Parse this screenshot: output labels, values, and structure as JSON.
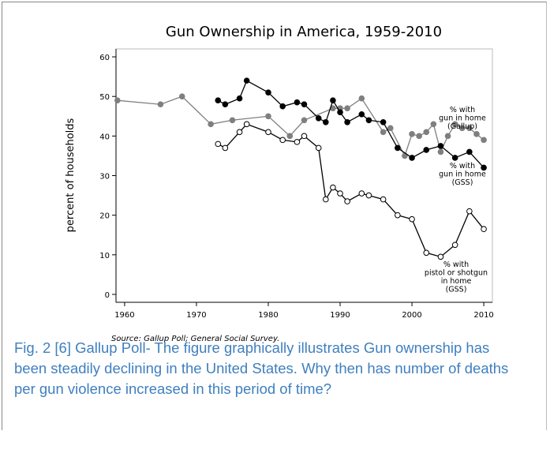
{
  "chart_data": {
    "type": "line",
    "title": "Gun Ownership in America, 1959-2010",
    "y_label": "percent of households",
    "source": "Source: Gallup Poll; General Social Survey.",
    "xlim": [
      1958.8,
      2011.2
    ],
    "xticks": [
      1960,
      1970,
      1980,
      1990,
      2000,
      2010
    ],
    "ylim": [
      -2,
      62
    ],
    "yticks": [
      0,
      10,
      20,
      30,
      40,
      50,
      60
    ],
    "series": [
      {
        "label_lines": [
          "% with",
          "gun in home",
          "(Gallup)"
        ],
        "color": "#7f7f7f",
        "marker_fill": "#7f7f7f",
        "x": [
          1959,
          1965,
          1968,
          1972,
          1975,
          1980,
          1983,
          1985,
          1989,
          1990,
          1991,
          1993,
          1996,
          1997,
          1999,
          2000,
          2001,
          2002,
          2003,
          2004,
          2005,
          2006,
          2007,
          2008,
          2009,
          2010
        ],
        "values": [
          49,
          48,
          50,
          43,
          44,
          45,
          40,
          44,
          47,
          47,
          47,
          49.5,
          41,
          42,
          35,
          40.5,
          40,
          41,
          43,
          36,
          40,
          43,
          42,
          42,
          40.5,
          39
        ]
      },
      {
        "label_lines": [
          "% with",
          "gun in home",
          "(GSS)"
        ],
        "color": "#000000",
        "marker_fill": "#000000",
        "x": [
          1973,
          1974,
          1976,
          1977,
          1980,
          1982,
          1984,
          1985,
          1987,
          1988,
          1989,
          1990,
          1991,
          1993,
          1994,
          1996,
          1998,
          2000,
          2002,
          2004,
          2006,
          2008,
          2010
        ],
        "values": [
          49,
          48,
          49.5,
          54,
          51,
          47.5,
          48.5,
          48,
          44.5,
          43.5,
          49,
          46,
          43.5,
          45.5,
          44,
          43.5,
          37,
          34.5,
          36.5,
          37.5,
          34.5,
          36,
          32
        ]
      },
      {
        "label_lines": [
          "% with",
          "pistol or shotgun",
          "in home",
          "(GSS)"
        ],
        "color": "#000000",
        "marker_fill": "#ffffff",
        "x": [
          1973,
          1974,
          1976,
          1977,
          1980,
          1982,
          1984,
          1985,
          1987,
          1988,
          1989,
          1990,
          1991,
          1993,
          1994,
          1996,
          1998,
          2000,
          2002,
          2004,
          2006,
          2008,
          2010
        ],
        "values": [
          38,
          37,
          41,
          43,
          41,
          39,
          38.5,
          40,
          37,
          24,
          27,
          25.5,
          23.5,
          25.5,
          25,
          24,
          20,
          19,
          10.5,
          9.5,
          12.5,
          21,
          16.5
        ]
      }
    ]
  },
  "caption": "Fig. 2 [6] Gallup Poll- The figure graphically illustrates Gun ownership has been steadily declining in the United States. Why then has number of deaths per gun violence increased in this period of time?"
}
